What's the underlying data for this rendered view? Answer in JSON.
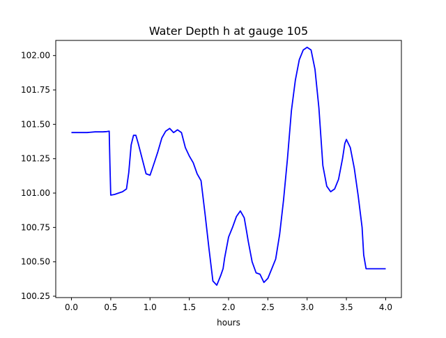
{
  "chart_data": {
    "type": "line",
    "title": "Water Depth h at gauge 105",
    "xlabel": "hours",
    "ylabel": "",
    "xlim": [
      -0.2,
      4.2
    ],
    "ylim": [
      100.24,
      102.11
    ],
    "xticks": [
      "0.0",
      "0.5",
      "1.0",
      "1.5",
      "2.0",
      "2.5",
      "3.0",
      "3.5",
      "4.0"
    ],
    "yticks": [
      "100.25",
      "100.50",
      "100.75",
      "101.00",
      "101.25",
      "101.50",
      "101.75",
      "102.00"
    ],
    "grid": false,
    "line_color": "#0000ff",
    "series": [
      {
        "x": [
          0.0,
          0.1,
          0.2,
          0.3,
          0.4,
          0.45,
          0.48,
          0.49,
          0.5,
          0.55,
          0.6,
          0.65,
          0.7,
          0.73,
          0.76,
          0.79,
          0.82,
          0.85,
          0.9,
          0.95,
          1.0,
          1.03,
          1.06,
          1.1,
          1.15,
          1.2,
          1.25,
          1.3,
          1.35,
          1.4,
          1.45,
          1.5,
          1.55,
          1.6,
          1.65,
          1.7,
          1.75,
          1.8,
          1.85,
          1.9,
          1.93,
          1.95,
          2.0,
          2.05,
          2.1,
          2.15,
          2.2,
          2.23,
          2.25,
          2.3,
          2.35,
          2.4,
          2.45,
          2.5,
          2.55,
          2.6,
          2.65,
          2.7,
          2.75,
          2.8,
          2.85,
          2.9,
          2.95,
          3.0,
          3.05,
          3.1,
          3.15,
          3.18,
          3.2,
          3.25,
          3.3,
          3.35,
          3.4,
          3.45,
          3.48,
          3.5,
          3.55,
          3.6,
          3.65,
          3.7,
          3.72,
          3.75,
          3.8,
          3.85,
          3.9,
          3.95,
          4.0
        ],
        "y": [
          101.44,
          101.44,
          101.44,
          101.445,
          101.445,
          101.447,
          101.45,
          101.2,
          100.985,
          100.99,
          101.0,
          101.01,
          101.03,
          101.15,
          101.35,
          101.42,
          101.42,
          101.36,
          101.25,
          101.14,
          101.13,
          101.18,
          101.23,
          101.3,
          101.4,
          101.45,
          101.47,
          101.44,
          101.46,
          101.44,
          101.33,
          101.27,
          101.22,
          101.14,
          101.09,
          100.85,
          100.6,
          100.36,
          100.33,
          100.4,
          100.45,
          100.53,
          100.68,
          100.75,
          100.83,
          100.87,
          100.82,
          100.72,
          100.65,
          100.5,
          100.42,
          100.41,
          100.35,
          100.38,
          100.45,
          100.52,
          100.7,
          100.95,
          101.25,
          101.6,
          101.82,
          101.97,
          102.04,
          102.06,
          102.04,
          101.9,
          101.62,
          101.37,
          101.2,
          101.05,
          101.01,
          101.03,
          101.1,
          101.25,
          101.36,
          101.39,
          101.33,
          101.18,
          100.98,
          100.75,
          100.55,
          100.45,
          100.45,
          100.45,
          100.45,
          100.45,
          100.45
        ]
      }
    ]
  }
}
